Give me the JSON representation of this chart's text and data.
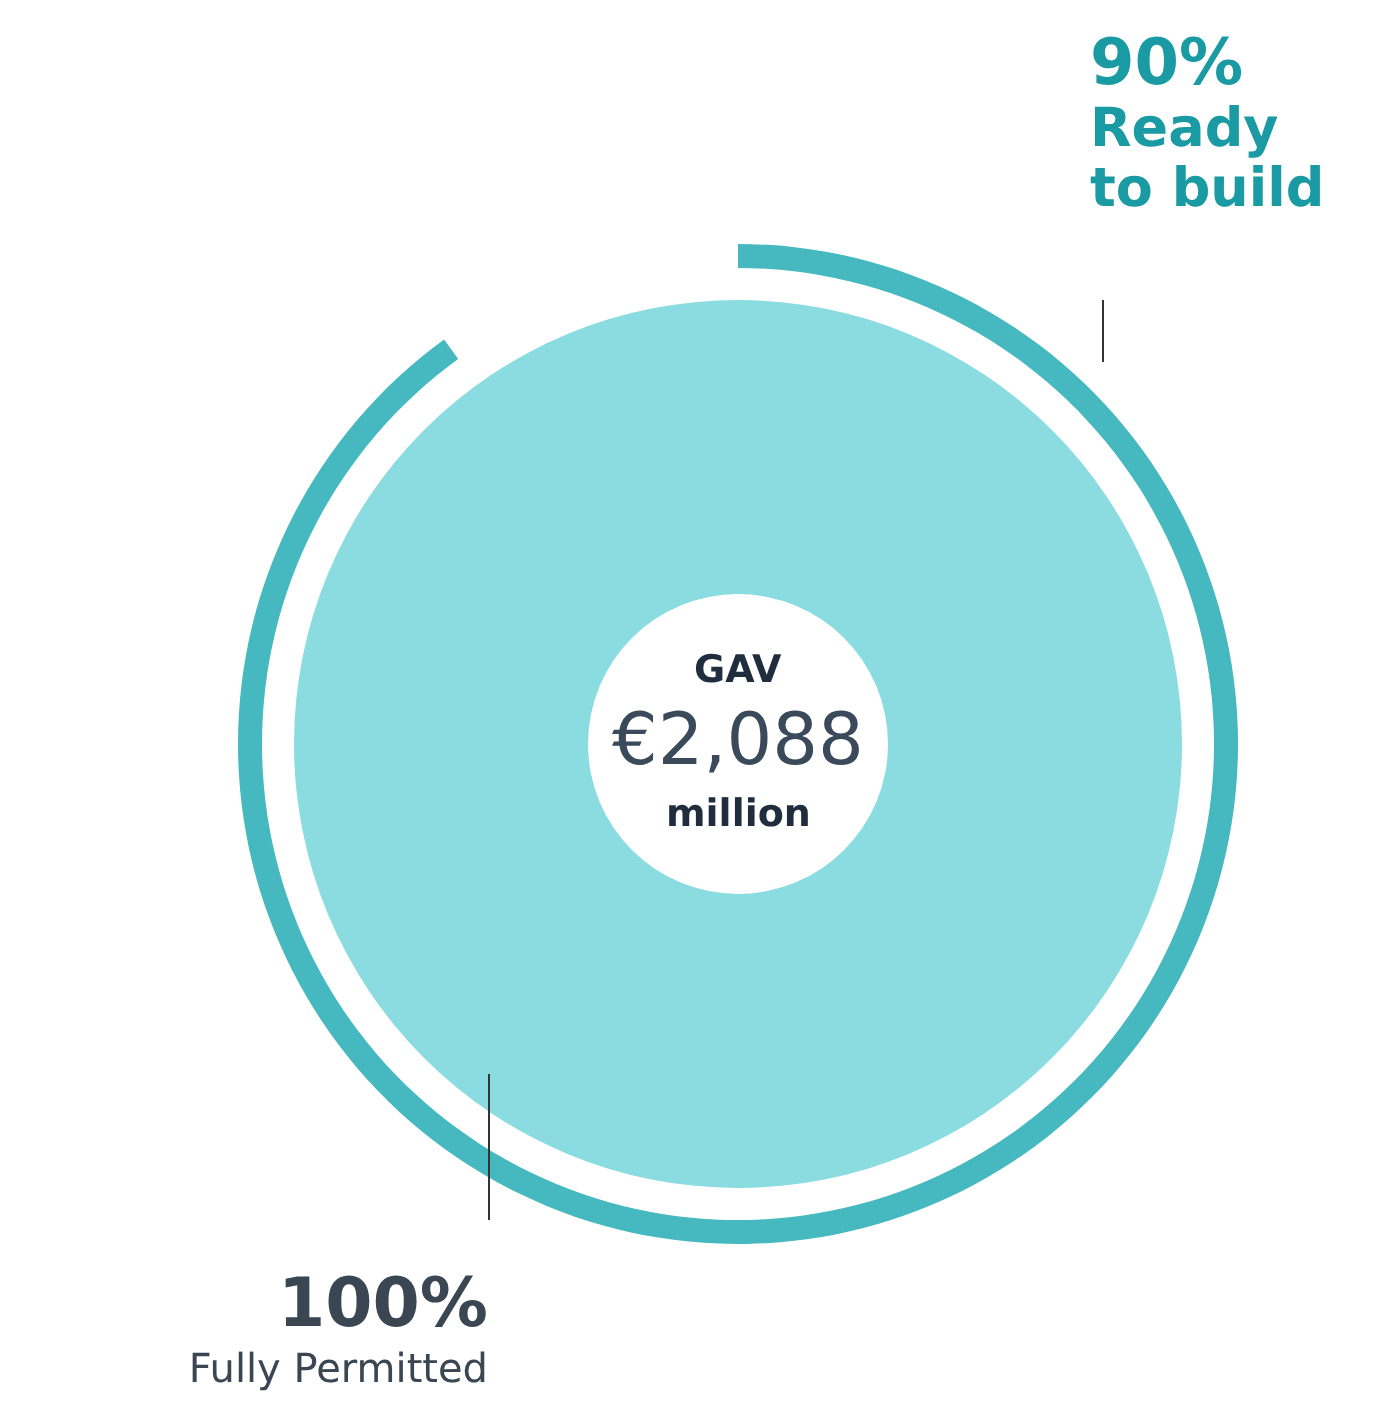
{
  "chart_data": [
    {
      "type": "pie",
      "categories": [
        "Ready to build"
      ],
      "values": [
        90
      ],
      "colors": [
        "#45b8c0"
      ],
      "value_labels": [
        "90%"
      ]
    },
    {
      "type": "pie",
      "categories": [
        "Fully Permitted"
      ],
      "values": [
        100
      ],
      "colors": [
        "#8adce0"
      ],
      "value_labels": [
        "100%"
      ],
      "annotations": [
        "GAV",
        "€2,088",
        "million"
      ]
    }
  ]
}
